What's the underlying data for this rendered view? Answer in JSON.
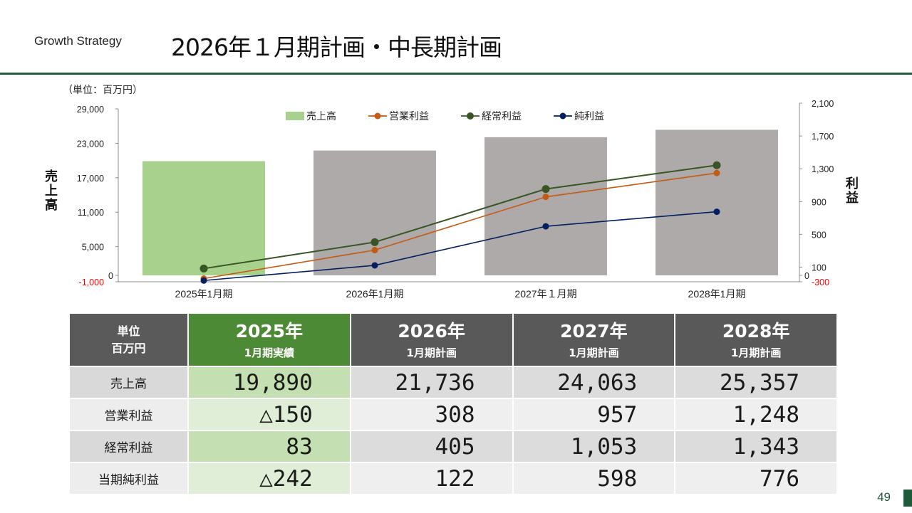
{
  "header": {
    "section": "Growth Strategy",
    "title": "2026年１月期計画・中長期計画"
  },
  "chart_data": {
    "type": "bar",
    "unit_label": "（単位：百万円）",
    "categories": [
      "2025年1月期",
      "2026年1月期",
      "2027年１月期",
      "2028年1月期"
    ],
    "bar_series": {
      "name": "売上高",
      "values": [
        19890,
        21736,
        24063,
        25357
      ],
      "colors": [
        "#a9d18e",
        "#aeaaaa",
        "#aeaaaa",
        "#aeaaaa"
      ]
    },
    "line_series": [
      {
        "name": "営業利益",
        "values": [
          -150,
          308,
          957,
          1248
        ],
        "color": "#c55a11"
      },
      {
        "name": "経常利益",
        "values": [
          83,
          405,
          1053,
          1343
        ],
        "color": "#375623"
      },
      {
        "name": "純利益",
        "values": [
          -242,
          122,
          598,
          776
        ],
        "color": "#002060"
      }
    ],
    "left_axis": {
      "title": "売上高",
      "ticks": [
        "29,000",
        "23,000",
        "17,000",
        "11,000",
        "5,000",
        "0",
        "-1,000"
      ],
      "tick_values": [
        29000,
        23000,
        17000,
        11000,
        5000,
        0,
        -1000
      ],
      "range": [
        -1000,
        29000
      ],
      "negative_color": "#ff0000"
    },
    "right_axis": {
      "title": "利益",
      "ticks": [
        "2,100",
        "1,700",
        "1,300",
        "900",
        "500",
        "100",
        "0",
        "-300"
      ],
      "tick_values": [
        2100,
        1700,
        1300,
        900,
        500,
        100,
        0,
        -300
      ],
      "range": [
        -300,
        2100
      ],
      "negative_color": "#ff0000"
    },
    "legend_position": "top",
    "grid": false
  },
  "table": {
    "unit_header": [
      "単位",
      "百万円"
    ],
    "columns": [
      {
        "year": "2025年",
        "label": "1月期実績"
      },
      {
        "year": "2026年",
        "label": "1月期計画"
      },
      {
        "year": "2027年",
        "label": "1月期計画"
      },
      {
        "year": "2028年",
        "label": "1月期計画"
      }
    ],
    "rows": [
      {
        "label": "売上高",
        "values": [
          "19,890",
          "21,736",
          "24,063",
          "25,357"
        ]
      },
      {
        "label": "営業利益",
        "values": [
          "△150",
          "308",
          "957",
          "1,248"
        ]
      },
      {
        "label": "経常利益",
        "values": [
          "83",
          "405",
          "1,053",
          "1,343"
        ]
      },
      {
        "label": "当期純利益",
        "values": [
          "△242",
          "122",
          "598",
          "776"
        ]
      }
    ]
  },
  "footer": {
    "page_number": "49"
  }
}
